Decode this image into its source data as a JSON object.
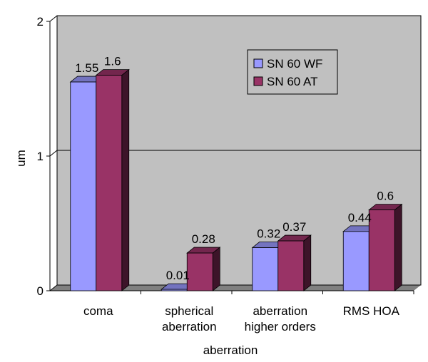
{
  "chart_data": {
    "type": "bar",
    "title": "",
    "xlabel": "aberration",
    "ylabel": "um",
    "ylim": [
      0,
      2
    ],
    "yticks": [
      "0",
      "1",
      "2"
    ],
    "grid": true,
    "legend_position": "top-right",
    "categories": [
      [
        "coma"
      ],
      [
        "spherical",
        "aberration"
      ],
      [
        "aberration",
        "higher orders"
      ],
      [
        "RMS HOA"
      ]
    ],
    "series": [
      {
        "name": "SN 60 WF",
        "color": "#9999ff",
        "values": [
          1.55,
          0.01,
          0.32,
          0.44
        ],
        "labels": [
          "1.55",
          "0.01",
          "0.32",
          "0.44"
        ]
      },
      {
        "name": "SN 60 AT",
        "color": "#993366",
        "values": [
          1.6,
          0.28,
          0.37,
          0.6
        ],
        "labels": [
          "1.6",
          "0.28",
          "0.37",
          "0.6"
        ]
      }
    ],
    "colors": {
      "plot_wall": "#c0c0c0",
      "floor": "#808080",
      "gridline": "#000000"
    }
  }
}
